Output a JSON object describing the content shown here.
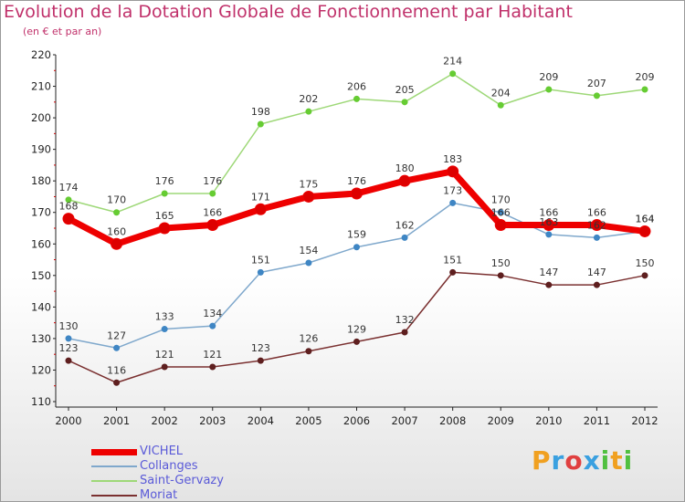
{
  "title": "Evolution de la Dotation Globale de Fonctionnement par Habitant",
  "subtitle": "(en € et par an)",
  "logo": {
    "text": "Proxiti",
    "letters": [
      {
        "ch": "P",
        "color": "#f0a020"
      },
      {
        "ch": "r",
        "color": "#3aa0e0"
      },
      {
        "ch": "o",
        "color": "#e04040"
      },
      {
        "ch": "x",
        "color": "#3aa0e0"
      },
      {
        "ch": "i",
        "color": "#50c040"
      },
      {
        "ch": "t",
        "color": "#f0a020"
      },
      {
        "ch": "i",
        "color": "#50c040"
      }
    ]
  },
  "chart_data": {
    "type": "line",
    "title": "Evolution de la Dotation Globale de Fonctionnement par Habitant",
    "subtitle": "(en € et par an)",
    "x": [
      "2000",
      "2001",
      "2002",
      "2003",
      "2004",
      "2005",
      "2006",
      "2007",
      "2008",
      "2009",
      "2010",
      "2011",
      "2012"
    ],
    "ylim": [
      110,
      220
    ],
    "yticks": [
      110,
      120,
      130,
      140,
      150,
      160,
      170,
      180,
      190,
      200,
      210,
      220
    ],
    "grid": false,
    "legend": "bottom-left",
    "series": [
      {
        "name": "VICHEL",
        "color": "#ee0000",
        "marker": "#dd0000",
        "width": 7,
        "values": [
          168,
          160,
          165,
          166,
          171,
          175,
          176,
          180,
          183,
          166,
          166,
          166,
          164
        ]
      },
      {
        "name": "Collanges",
        "color": "#7fa8cc",
        "marker": "#3f86c4",
        "width": 1.5,
        "values": [
          130,
          127,
          133,
          134,
          151,
          154,
          159,
          162,
          173,
          170,
          163,
          162,
          164
        ]
      },
      {
        "name": "Saint-Gervazy",
        "color": "#9ed878",
        "marker": "#66cc33",
        "width": 1.5,
        "values": [
          174,
          170,
          176,
          176,
          198,
          202,
          206,
          205,
          214,
          204,
          209,
          207,
          209
        ]
      },
      {
        "name": "Moriat",
        "color": "#7a3030",
        "marker": "#5e1f1f",
        "width": 1.5,
        "values": [
          123,
          116,
          121,
          121,
          123,
          126,
          129,
          132,
          151,
          150,
          147,
          147,
          150
        ]
      }
    ]
  }
}
